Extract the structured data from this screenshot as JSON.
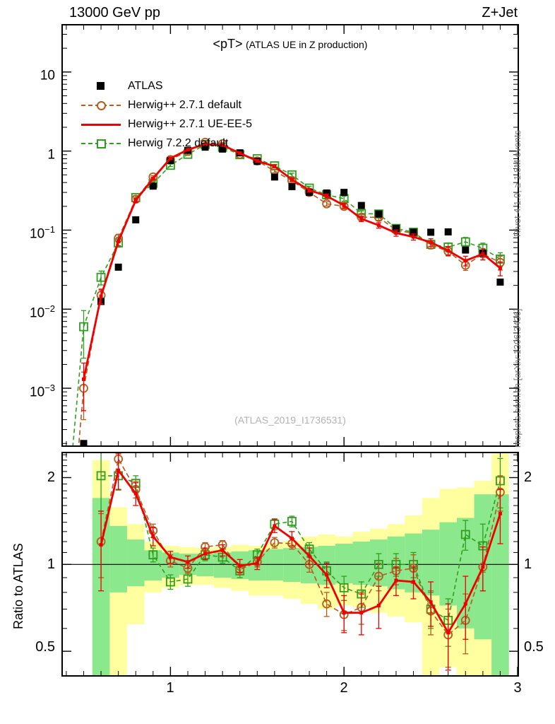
{
  "header": {
    "left": "13000 GeV pp",
    "right": "Z+Jet"
  },
  "main_panel": {
    "title": {
      "main": "<pT>",
      "sub": "(ATLAS UE in Z production)"
    },
    "watermark": "(ATLAS_2019_I1736531)",
    "legend": [
      {
        "label": "ATLAS",
        "marker": "black-filled-square"
      },
      {
        "label": "Herwig++ 2.7.1 default",
        "marker": "orange-dashed-open-circle"
      },
      {
        "label": "Herwig++ 2.7.1 UE-EE-5",
        "marker": "red-solid-line"
      },
      {
        "label": "Herwig 7.2.2 default",
        "marker": "green-dashed-open-square"
      }
    ]
  },
  "axes": {
    "main_y": [
      {
        "base": "10",
        "exp": ""
      },
      {
        "base": "1",
        "exp": ""
      },
      {
        "base": "10",
        "exp": "−1"
      },
      {
        "base": "10",
        "exp": "−2"
      },
      {
        "base": "10",
        "exp": "−3"
      }
    ],
    "ratio_y": [
      "2",
      "1",
      "0.5"
    ],
    "x": [
      "1",
      "2",
      "3"
    ]
  },
  "ratio_panel": {
    "ylabel": "Ratio to ATLAS"
  },
  "side_notes": {
    "rivet": "Rivet 4.1.0, ≥ 1.8M events",
    "mcplots": "mcplots.cern.ch [arXiv:1306.3436]"
  },
  "colors": {
    "atlas": "#000000",
    "herwig_default": "#b45b1d",
    "herwig_ueee5": "#ee0000",
    "herwig7": "#2f9e1f",
    "band_yellow": "#ffffa0",
    "band_green": "#8ce88c",
    "watermark": "#b2b2b2",
    "side_note": "#7a7a7a"
  },
  "chart_data": [
    {
      "type": "line",
      "title": "<pT> (ATLAS UE in Z production)",
      "xlabel": "",
      "ylabel": "",
      "xscale": "linear",
      "yscale": "log",
      "xlim": [
        0.38,
        3.0
      ],
      "ylim": [
        0.000189,
        38.8
      ],
      "grid": false,
      "legend_position": "top-left",
      "x": [
        0.5,
        0.6,
        0.7,
        0.8,
        0.9,
        1.0,
        1.1,
        1.2,
        1.3,
        1.4,
        1.5,
        1.6,
        1.7,
        1.8,
        1.9,
        2.0,
        2.1,
        2.2,
        2.3,
        2.4,
        2.5,
        2.6,
        2.7,
        2.8,
        2.9
      ],
      "err_frac": [
        0.6,
        0.2,
        0.12,
        0.06,
        0.04,
        0.035,
        0.03,
        0.03,
        0.03,
        0.035,
        0.04,
        0.045,
        0.05,
        0.055,
        0.06,
        0.07,
        0.08,
        0.08,
        0.09,
        0.09,
        0.11,
        0.13,
        0.14,
        0.16,
        0.2
      ],
      "series": [
        {
          "name": "ATLAS",
          "color": "#000000",
          "style": "none",
          "marker": "square-filled",
          "values": [
            0.0002,
            0.0125,
            0.034,
            0.135,
            0.36,
            0.76,
            1.02,
            1.12,
            1.06,
            0.95,
            0.74,
            0.47,
            0.355,
            0.3,
            0.295,
            0.3,
            0.205,
            0.16,
            0.105,
            0.094,
            0.094,
            0.095,
            0.056,
            0.051,
            0.022
          ]
        },
        {
          "name": "Herwig++ 2.7.1 default",
          "color": "#b45b1d",
          "style": "dashed",
          "marker": "circle-open",
          "lead": [
            [
              0.465,
              0.00013
            ]
          ],
          "values": [
            0.001,
            0.015,
            0.079,
            0.246,
            0.47,
            0.78,
            0.99,
            1.29,
            1.24,
            0.91,
            0.75,
            0.56,
            0.42,
            0.3,
            0.215,
            0.2,
            0.146,
            0.145,
            0.1,
            0.091,
            0.065,
            0.054,
            0.036,
            0.05,
            0.039
          ]
        },
        {
          "name": "Herwig++ 2.7.1 UE-EE-5",
          "color": "#ee0000",
          "style": "solid",
          "marker": "tick",
          "values": [
            0.0013,
            0.0146,
            0.072,
            0.238,
            0.45,
            0.81,
            1.04,
            1.22,
            1.19,
            0.94,
            0.75,
            0.64,
            0.435,
            0.32,
            0.27,
            0.205,
            0.139,
            0.115,
            0.092,
            0.082,
            0.07,
            0.055,
            0.041,
            0.05,
            0.033
          ]
        },
        {
          "name": "Herwig 7.2.2 default",
          "color": "#2f9e1f",
          "style": "dashed",
          "marker": "square-open",
          "lead": [
            [
              0.43,
              0.00012
            ]
          ],
          "values": [
            0.006,
            0.0253,
            0.069,
            0.258,
            0.39,
            0.66,
            0.91,
            1.21,
            1.12,
            0.9,
            0.8,
            0.65,
            0.5,
            0.34,
            0.28,
            0.25,
            0.162,
            0.16,
            0.105,
            0.094,
            0.066,
            0.061,
            0.071,
            0.059,
            0.043
          ]
        }
      ]
    },
    {
      "type": "ratio",
      "title": "Ratio to ATLAS",
      "yscale": "log",
      "xlim": [
        0.38,
        3.0
      ],
      "ylim": [
        0.413,
        2.43
      ],
      "ref_line": 1,
      "x": [
        0.6,
        0.7,
        0.8,
        0.9,
        1.0,
        1.1,
        1.2,
        1.3,
        1.4,
        1.5,
        1.6,
        1.7,
        1.8,
        1.9,
        2.0,
        2.1,
        2.2,
        2.3,
        2.4,
        2.5,
        2.6,
        2.7,
        2.8,
        2.9
      ],
      "series": [
        {
          "name": "Herwig++ 2.7.1 default",
          "color": "#b45b1d",
          "style": "dashed",
          "marker": "circle-open",
          "values": [
            1.2,
            2.32,
            1.82,
            1.31,
            1.03,
            0.97,
            1.15,
            1.17,
            0.96,
            1.02,
            1.19,
            1.18,
            1.0,
            0.73,
            0.67,
            0.71,
            0.91,
            0.95,
            0.97,
            0.69,
            0.57,
            0.64,
            0.98,
            1.78
          ],
          "err": [
            0.3,
            0.25,
            0.12,
            0.07,
            0.05,
            0.04,
            0.04,
            0.04,
            0.04,
            0.04,
            0.05,
            0.05,
            0.06,
            0.07,
            0.08,
            0.09,
            0.1,
            0.1,
            0.11,
            0.12,
            0.13,
            0.15,
            0.17,
            0.25
          ]
        },
        {
          "name": "Herwig++ 2.7.1 UE-EE-5",
          "color": "#ee0000",
          "style": "solid",
          "marker": "tick",
          "values": [
            1.17,
            2.12,
            1.76,
            1.25,
            1.06,
            1.02,
            1.09,
            1.12,
            0.99,
            1.01,
            1.36,
            1.23,
            1.07,
            0.92,
            0.68,
            0.68,
            0.72,
            0.88,
            0.87,
            0.74,
            0.58,
            0.73,
            0.98,
            1.5
          ],
          "err": [
            0.36,
            0.3,
            0.16,
            0.09,
            0.05,
            0.05,
            0.05,
            0.05,
            0.05,
            0.05,
            0.07,
            0.07,
            0.07,
            0.09,
            0.1,
            0.11,
            0.12,
            0.1,
            0.11,
            0.13,
            0.15,
            0.18,
            0.17,
            0.32
          ]
        },
        {
          "name": "Herwig 7.2.2 default",
          "color": "#2f9e1f",
          "style": "dashed",
          "marker": "square-open",
          "values": [
            2.03,
            2.03,
            1.91,
            1.08,
            0.87,
            0.89,
            1.08,
            1.06,
            0.95,
            1.08,
            1.38,
            1.41,
            1.13,
            0.95,
            0.83,
            0.79,
            1.0,
            1.0,
            1.0,
            0.7,
            0.64,
            1.27,
            1.16,
            1.95
          ],
          "err": [
            0.5,
            0.22,
            0.12,
            0.06,
            0.05,
            0.05,
            0.05,
            0.05,
            0.05,
            0.05,
            0.06,
            0.06,
            0.06,
            0.07,
            0.08,
            0.08,
            0.09,
            0.09,
            0.1,
            0.1,
            0.12,
            0.15,
            0.22,
            0.38
          ]
        }
      ],
      "bands": {
        "bin_halfwidth": 0.05,
        "yellow": [
          [
            0.3,
            2.3
          ],
          [
            0.3,
            1.58
          ],
          [
            0.62,
            1.38
          ],
          [
            0.8,
            1.2
          ],
          [
            0.83,
            1.16
          ],
          [
            0.85,
            1.15
          ],
          [
            0.85,
            1.14
          ],
          [
            0.83,
            1.15
          ],
          [
            0.81,
            1.17
          ],
          [
            0.78,
            1.16
          ],
          [
            0.78,
            1.19
          ],
          [
            0.76,
            1.21
          ],
          [
            0.73,
            1.25
          ],
          [
            0.7,
            1.27
          ],
          [
            0.72,
            1.25
          ],
          [
            0.71,
            1.3
          ],
          [
            0.68,
            1.33
          ],
          [
            0.66,
            1.38
          ],
          [
            0.63,
            1.48
          ],
          [
            0.3,
            1.7
          ],
          [
            0.44,
            1.83
          ],
          [
            0.3,
            1.85
          ],
          [
            0.3,
            1.95
          ],
          [
            0.3,
            2.45
          ]
        ],
        "green": [
          [
            0.3,
            1.7
          ],
          [
            0.8,
            1.36
          ],
          [
            0.84,
            1.22
          ],
          [
            0.88,
            1.12
          ],
          [
            0.9,
            1.1
          ],
          [
            0.92,
            1.09
          ],
          [
            0.91,
            1.09
          ],
          [
            0.9,
            1.1
          ],
          [
            0.89,
            1.11
          ],
          [
            0.88,
            1.12
          ],
          [
            0.88,
            1.13
          ],
          [
            0.87,
            1.14
          ],
          [
            0.86,
            1.15
          ],
          [
            0.85,
            1.16
          ],
          [
            0.86,
            1.18
          ],
          [
            0.85,
            1.2
          ],
          [
            0.84,
            1.22
          ],
          [
            0.82,
            1.25
          ],
          [
            0.8,
            1.28
          ],
          [
            0.78,
            1.32
          ],
          [
            0.72,
            1.4
          ],
          [
            0.6,
            1.45
          ],
          [
            0.55,
            1.75
          ],
          [
            0.3,
            1.75
          ]
        ]
      }
    }
  ]
}
